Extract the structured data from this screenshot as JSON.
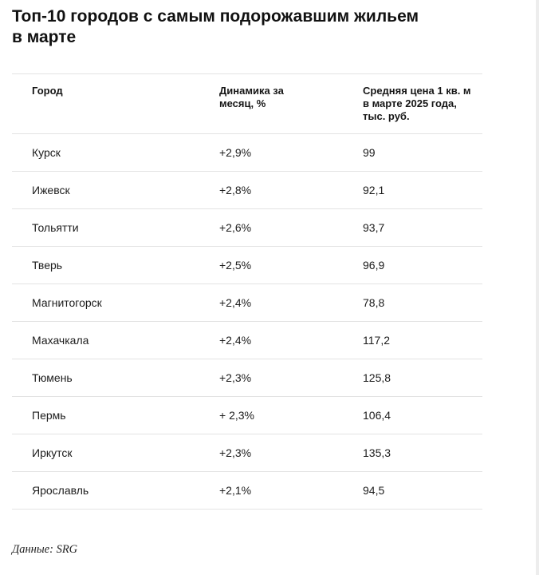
{
  "article": {
    "title_lines": {
      "line1": "Топ-10 городов с самым подорожавшим жильем",
      "line2": "в марте"
    },
    "source_label": "Данные: SRG"
  },
  "chart_data": {
    "type": "table",
    "title": "Топ-10 городов с самым подорожавшим жильем в марте",
    "columns": {
      "city": "Город",
      "dynamics": "Динамика за месяц, %",
      "price": "Средняя цена 1 кв. м в марте 2025 года, тыс. руб."
    },
    "rows": [
      {
        "city": "Курск",
        "dynamics": "+2,9%",
        "price": "99"
      },
      {
        "city": "Ижевск",
        "dynamics": "+2,8%",
        "price": "92,1"
      },
      {
        "city": "Тольятти",
        "dynamics": "+2,6%",
        "price": "93,7"
      },
      {
        "city": "Тверь",
        "dynamics": "+2,5%",
        "price": "96,9"
      },
      {
        "city": "Магнитогорск",
        "dynamics": "+2,4%",
        "price": "78,8"
      },
      {
        "city": "Махачкала",
        "dynamics": "+2,4%",
        "price": "117,2"
      },
      {
        "city": "Тюмень",
        "dynamics": "+2,3%",
        "price": "125,8"
      },
      {
        "city": "Пермь",
        "dynamics": "+ 2,3%",
        "price": "106,4"
      },
      {
        "city": "Иркутск",
        "dynamics": "+2,3%",
        "price": "135,3"
      },
      {
        "city": "Ярославль",
        "dynamics": "+2,1%",
        "price": "94,5"
      }
    ],
    "source": "Данные: SRG"
  }
}
